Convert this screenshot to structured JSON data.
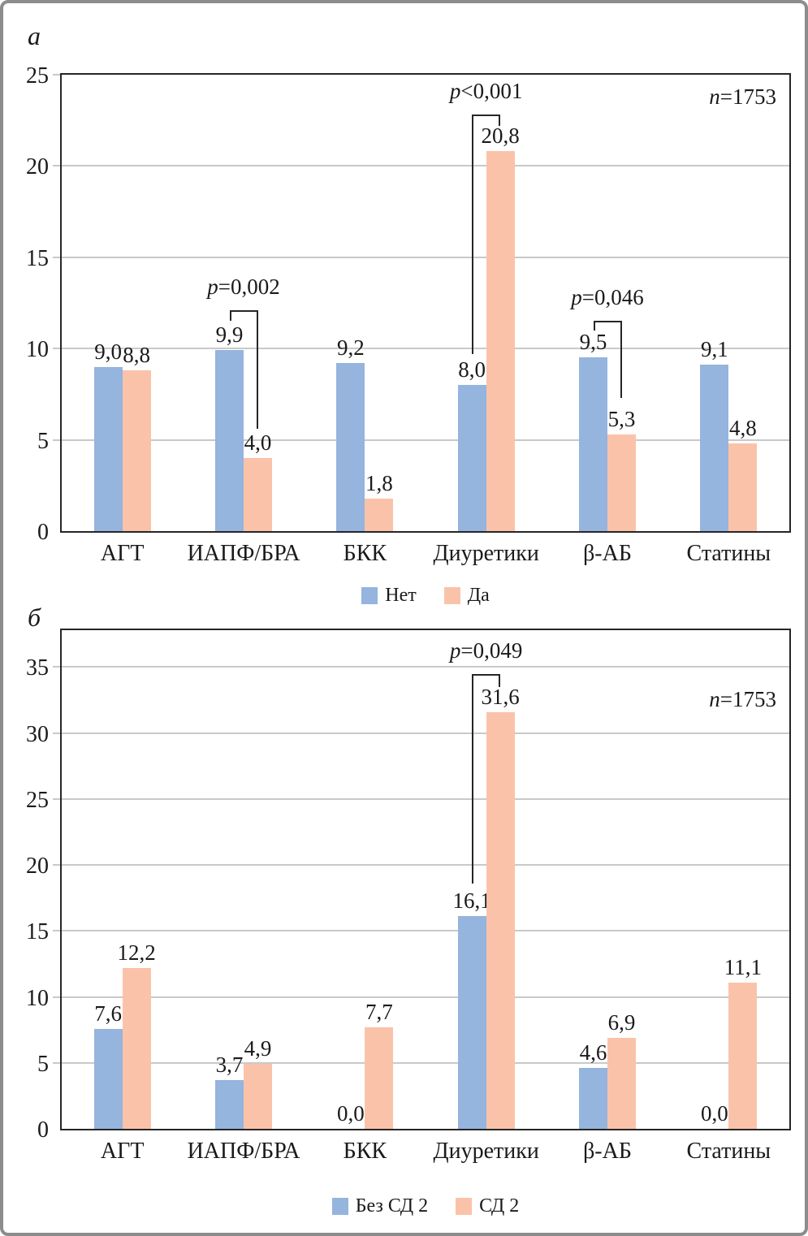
{
  "figure": {
    "panels": [
      {
        "panel_label": "а"
      },
      {
        "panel_label": "б"
      }
    ]
  },
  "colors": {
    "bar_blue": "#95b4de",
    "bar_salmon": "#fac3a9",
    "gridline": "#c9c9c9",
    "axis": "#262626",
    "outer_border": "#8c8c8c"
  },
  "chart_data": [
    {
      "type": "bar",
      "panel": "а",
      "n_label": "n=1753",
      "categories": [
        "АГТ",
        "ИАПФ/БРА",
        "БКК",
        "Диуретики",
        "β-АБ",
        "Статины"
      ],
      "series": [
        {
          "name": "Нет",
          "color": "#95b4de",
          "values": [
            9.0,
            9.9,
            9.2,
            8.0,
            9.5,
            9.1
          ]
        },
        {
          "name": "Да",
          "color": "#fac3a9",
          "values": [
            8.8,
            4.0,
            1.8,
            20.8,
            5.3,
            4.8
          ]
        }
      ],
      "annotations": [
        {
          "text": "p=0,002",
          "category": "ИАПФ/БРА",
          "y_top": 12.1,
          "left_end": 11.5,
          "right_end": 5.6
        },
        {
          "text": "p<0,001",
          "category": "Диуретики",
          "y_top": 22.8,
          "left_end": 9.7,
          "right_end": 22.2
        },
        {
          "text": "p=0,046",
          "category": "β-АБ",
          "y_top": 11.5,
          "left_end": 11.0,
          "right_end": 7.3
        }
      ],
      "ylim": [
        0,
        25
      ],
      "yticks": [
        0,
        5,
        10,
        15,
        20,
        25
      ],
      "grid": true,
      "legend_position": "bottom",
      "decimal_separator": ","
    },
    {
      "type": "bar",
      "panel": "б",
      "n_label": "n=1753",
      "categories": [
        "АГТ",
        "ИАПФ/БРА",
        "БКК",
        "Диуретики",
        "β-АБ",
        "Статины"
      ],
      "series": [
        {
          "name": "Без СД 2",
          "color": "#95b4de",
          "values": [
            7.6,
            3.7,
            0.0,
            16.1,
            4.6,
            0.0
          ]
        },
        {
          "name": "СД 2",
          "color": "#fac3a9",
          "values": [
            12.2,
            4.9,
            7.7,
            31.6,
            6.9,
            11.1
          ]
        }
      ],
      "annotations": [
        {
          "text": "p=0,049",
          "category": "Диуретики",
          "y_top": 34.5,
          "left_end": 18.6,
          "right_end": 33.5
        }
      ],
      "ylim": [
        0,
        37.8
      ],
      "yticks": [
        0,
        5,
        10,
        15,
        20,
        25,
        30,
        35
      ],
      "grid": true,
      "legend_position": "bottom",
      "decimal_separator": ","
    }
  ]
}
